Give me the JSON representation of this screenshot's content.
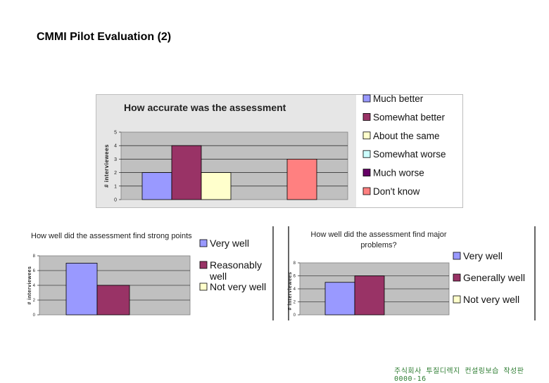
{
  "slide": {
    "title": "CMMI Pilot Evaluation (2)",
    "footer": "주식회사 투질디렉지 컨설링보습 작성판 0000-16"
  },
  "colors": {
    "gray_plot": "#c0c0c0",
    "series": [
      "#9999ff",
      "#993366",
      "#ffffcc",
      "#ccffff",
      "#660066",
      "#ff8080"
    ]
  },
  "chart_data": [
    {
      "type": "bar",
      "title": "How accurate was the assessment",
      "xlabel": "",
      "ylabel": "# interviewees",
      "ylim": [
        0,
        5
      ],
      "yticks": [
        0,
        1,
        2,
        3,
        4,
        5
      ],
      "series": [
        {
          "name": "Much better",
          "values": [
            2
          ]
        },
        {
          "name": "Somewhat better",
          "values": [
            4
          ]
        },
        {
          "name": "About the same",
          "values": [
            2
          ]
        },
        {
          "name": "Somewhat worse",
          "values": [
            0
          ]
        },
        {
          "name": "Much worse",
          "values": [
            0
          ]
        },
        {
          "name": "Don't know",
          "values": [
            3
          ]
        }
      ],
      "legend": "right"
    },
    {
      "type": "bar",
      "title": "How well did the assessment find strong points",
      "xlabel": "",
      "ylabel": "# interviewees",
      "ylim": [
        0,
        8
      ],
      "yticks": [
        0,
        2,
        4,
        6,
        8
      ],
      "series": [
        {
          "name": "Very well",
          "values": [
            7
          ]
        },
        {
          "name": "Reasonably well",
          "values": [
            4
          ]
        },
        {
          "name": "Not very well",
          "values": [
            0
          ]
        }
      ],
      "legend": "right"
    },
    {
      "type": "bar",
      "title": "How well did the assessment find major problems?",
      "xlabel": "",
      "ylabel": "# interviewees",
      "ylim": [
        0,
        8
      ],
      "yticks": [
        0,
        2,
        4,
        6,
        8
      ],
      "series": [
        {
          "name": "Very well",
          "values": [
            5
          ]
        },
        {
          "name": "Generally well",
          "values": [
            6
          ]
        },
        {
          "name": "Not very well",
          "values": [
            0
          ]
        }
      ],
      "legend": "right"
    }
  ]
}
